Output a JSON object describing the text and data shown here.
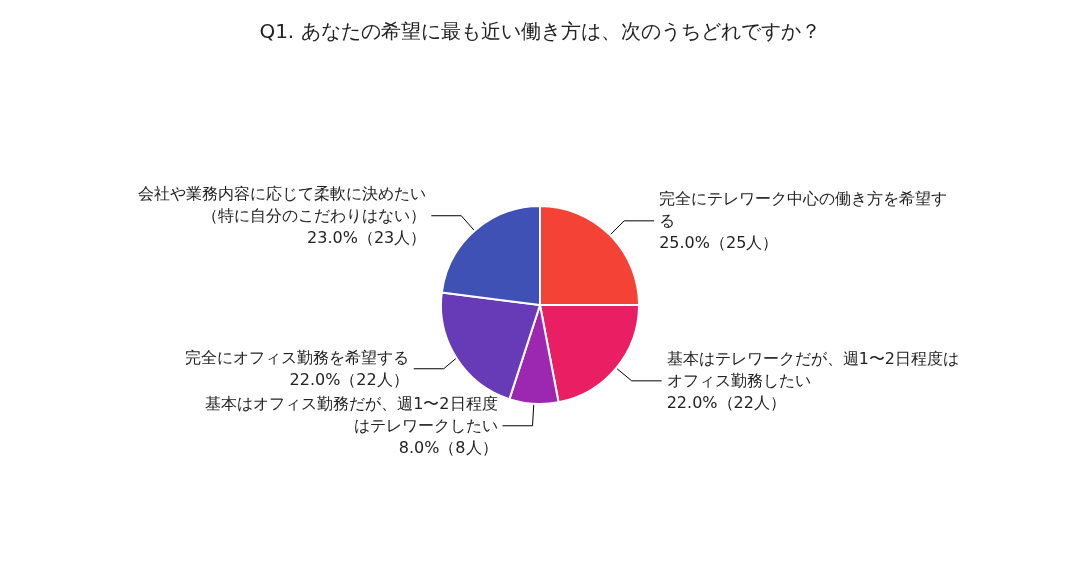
{
  "chart_data": {
    "type": "pie",
    "title": "Q1. あなたの希望に最も近い働き方は、次のうちどれですか？",
    "categories": [
      "完全にテレワーク中心の働き方を希望する",
      "基本はテレワークだが、週1〜2日程度はオフィス勤務したい",
      "基本はオフィス勤務だが、週1〜2日程度はテレワークしたい",
      "完全にオフィス勤務を希望する",
      "会社や業務内容に応じて柔軟に決めたい（特に自分のこだわりはない）"
    ],
    "values": [
      25,
      22,
      8,
      22,
      23
    ],
    "value_labels": [
      "25.0%（25人）",
      "22.0%（22人）",
      "8.0%（8人）",
      "22.0%（22人）",
      "23.0%（23人）"
    ],
    "colors": [
      "#f44336",
      "#e91e63",
      "#9c27b0",
      "#673ab7",
      "#3f51b5"
    ],
    "legend": false
  }
}
